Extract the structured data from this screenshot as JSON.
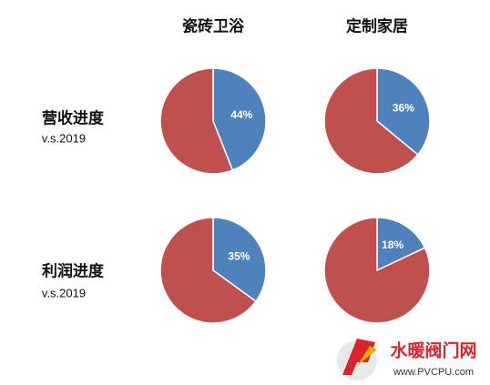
{
  "columns": [
    "瓷砖卫浴",
    "定制家居"
  ],
  "rows": [
    {
      "label": "营收进度",
      "sub": "v.s.2019"
    },
    {
      "label": "利润进度",
      "sub": "v.s.2019"
    }
  ],
  "watermark": {
    "name": "水暖阀门网",
    "url": "www.PVCPU.com"
  },
  "chart_data": [
    {
      "type": "pie",
      "values": [
        44,
        56
      ],
      "value_labels": [
        "44%",
        null
      ],
      "colors": [
        "#4f81bd",
        "#c0504d"
      ]
    },
    {
      "type": "pie",
      "values": [
        36,
        64
      ],
      "value_labels": [
        "36%",
        null
      ],
      "colors": [
        "#4f81bd",
        "#c0504d"
      ]
    },
    {
      "type": "pie",
      "values": [
        35,
        65
      ],
      "value_labels": [
        "35%",
        null
      ],
      "colors": [
        "#4f81bd",
        "#c0504d"
      ]
    },
    {
      "type": "pie",
      "values": [
        18,
        82
      ],
      "value_labels": [
        "18%",
        null
      ],
      "colors": [
        "#4f81bd",
        "#c0504d"
      ]
    }
  ]
}
